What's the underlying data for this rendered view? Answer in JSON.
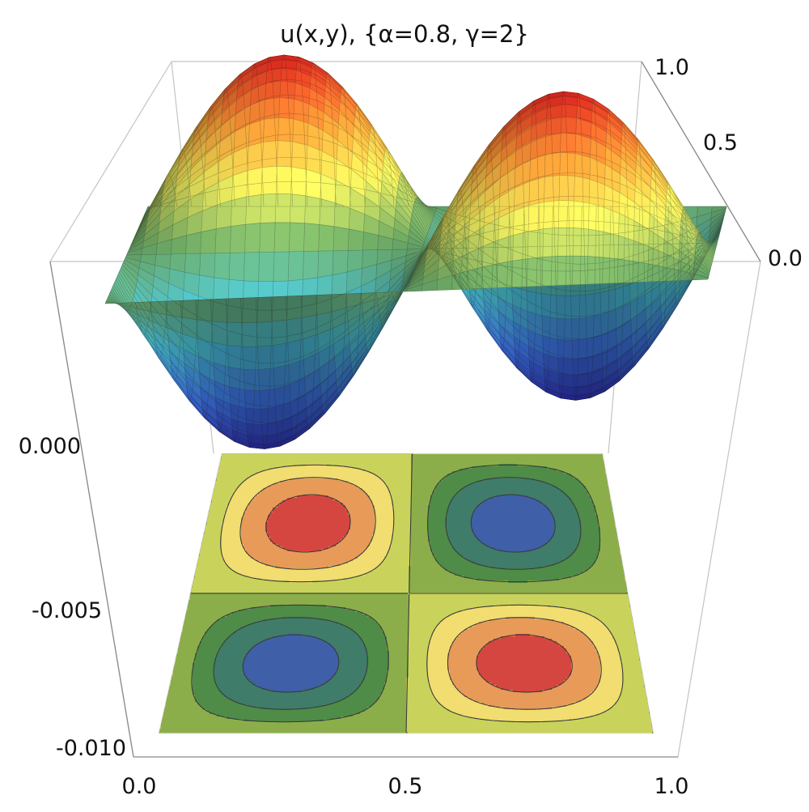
{
  "chart_data": {
    "type": "surface3d",
    "title": "u(x,y), {α=0.8, γ=2}",
    "xlabel": "",
    "ylabel": "",
    "zlabel": "",
    "x_range": [
      0.0,
      1.0
    ],
    "y_range": [
      0.0,
      1.0
    ],
    "z_range": [
      -0.01,
      0.004
    ],
    "x_ticks": [
      "0.0",
      "0.5",
      "1.0"
    ],
    "y_ticks": [
      "0.0",
      "0.5",
      "1.0"
    ],
    "z_ticks": [
      "0.000",
      "-0.005",
      "-0.010"
    ],
    "surface": {
      "shape": "four-lobe saddle: two maxima near (0.25,0.75) and (0.75,0.25), two minima near (0.25,0.25) and (0.75,0.75)",
      "peak_value": 0.0035,
      "trough_value": -0.0035,
      "colormap": "rainbow (blue low, red high)"
    },
    "contour_projection": {
      "plane": "bottom (z = -0.010)",
      "levels": [
        -0.0028,
        -0.0018,
        -0.0009,
        0.0,
        0.0009,
        0.0018,
        0.0028
      ],
      "colors": [
        "#3f5fa8",
        "#3f7c6a",
        "#4e8c47",
        "#8cae4a",
        "#c9d35b",
        "#f1dd70",
        "#e89a58",
        "#d64640"
      ]
    },
    "grid": false,
    "legend": "none"
  }
}
